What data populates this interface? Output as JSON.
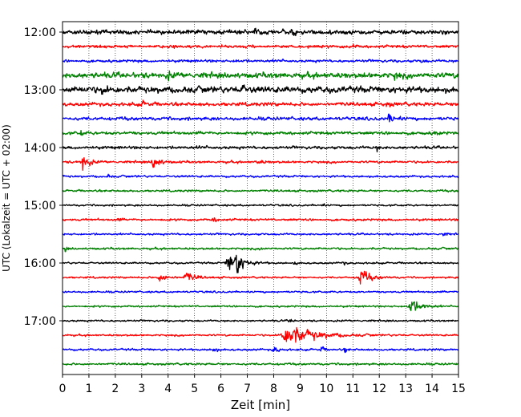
{
  "chart_data": {
    "type": "line",
    "subtype": "helicorder",
    "xlabel": "Zeit  [min]",
    "ylabel": "UTC (Lokalzeit = UTC + 02:00)",
    "xlim": [
      0,
      15
    ],
    "x_ticks": [
      0,
      1,
      2,
      3,
      4,
      5,
      6,
      7,
      8,
      9,
      10,
      11,
      12,
      13,
      14,
      15
    ],
    "vertical_grid": "dotted",
    "row_interval_min": 15,
    "row_start_time": "12:00",
    "y_tick_labels": [
      "12:00",
      "13:00",
      "14:00",
      "15:00",
      "16:00",
      "17:00"
    ],
    "y_tick_rows": [
      0,
      4,
      8,
      12,
      16,
      20
    ],
    "color_cycle": [
      "#000000",
      "#ff0000",
      "#0000ff",
      "#008000"
    ],
    "traces": [
      {
        "row": 0,
        "noise": 0.33,
        "events": [
          {
            "t": 2.5,
            "amp": 0.35,
            "dur": 0.15
          },
          {
            "t": 7.3,
            "amp": 0.4,
            "dur": 0.2
          },
          {
            "t": 8.7,
            "amp": 0.45,
            "dur": 0.2
          },
          {
            "t": 10.9,
            "amp": 0.35,
            "dur": 0.15
          }
        ]
      },
      {
        "row": 1,
        "noise": 0.22,
        "events": [
          {
            "t": 4.2,
            "amp": 0.5,
            "dur": 0.15
          },
          {
            "t": 11.0,
            "amp": 0.4,
            "dur": 0.15
          }
        ]
      },
      {
        "row": 2,
        "noise": 0.2,
        "events": [
          {
            "t": 6.6,
            "amp": 0.3,
            "dur": 0.15
          },
          {
            "t": 8.1,
            "amp": 0.3,
            "dur": 0.15
          },
          {
            "t": 13.6,
            "amp": 0.3,
            "dur": 0.15
          }
        ]
      },
      {
        "row": 3,
        "noise": 0.42,
        "events": [
          {
            "t": 4.0,
            "amp": 0.4,
            "dur": 0.25
          },
          {
            "t": 12.6,
            "amp": 0.4,
            "dur": 0.2
          }
        ]
      },
      {
        "row": 4,
        "noise": 0.48,
        "events": [
          {
            "t": 1.5,
            "amp": 0.5,
            "dur": 0.3
          },
          {
            "t": 6.8,
            "amp": 0.5,
            "dur": 0.3
          }
        ]
      },
      {
        "row": 5,
        "noise": 0.28,
        "events": [
          {
            "t": 3.0,
            "amp": 0.35,
            "dur": 0.3
          },
          {
            "t": 12.3,
            "amp": 0.5,
            "dur": 0.15
          }
        ]
      },
      {
        "row": 6,
        "noise": 0.25,
        "events": [
          {
            "t": 12.4,
            "amp": 0.85,
            "dur": 0.3
          }
        ]
      },
      {
        "row": 7,
        "noise": 0.24,
        "events": [
          {
            "t": 0.7,
            "amp": 0.5,
            "dur": 0.1
          },
          {
            "t": 14.1,
            "amp": 0.4,
            "dur": 0.15
          }
        ]
      },
      {
        "row": 8,
        "noise": 0.22,
        "events": [
          {
            "t": 5.2,
            "amp": 0.4,
            "dur": 0.15
          },
          {
            "t": 11.9,
            "amp": 0.45,
            "dur": 0.15
          }
        ]
      },
      {
        "row": 9,
        "noise": 0.18,
        "events": [
          {
            "t": 0.75,
            "amp": 1.3,
            "dur": 0.35
          },
          {
            "t": 3.45,
            "amp": 1.2,
            "dur": 0.35
          },
          {
            "t": 7.4,
            "amp": 0.35,
            "dur": 0.3
          }
        ]
      },
      {
        "row": 10,
        "noise": 0.16,
        "events": [
          {
            "t": 1.7,
            "amp": 0.3,
            "dur": 0.15
          }
        ]
      },
      {
        "row": 11,
        "noise": 0.16,
        "events": []
      },
      {
        "row": 12,
        "noise": 0.14,
        "events": [
          {
            "t": 9.8,
            "amp": 0.3,
            "dur": 0.15
          }
        ]
      },
      {
        "row": 13,
        "noise": 0.17,
        "events": [
          {
            "t": 2.1,
            "amp": 0.45,
            "dur": 0.1
          },
          {
            "t": 5.7,
            "amp": 0.35,
            "dur": 0.3
          }
        ]
      },
      {
        "row": 14,
        "noise": 0.15,
        "events": [
          {
            "t": 14.4,
            "amp": 0.45,
            "dur": 0.15
          }
        ]
      },
      {
        "row": 15,
        "noise": 0.16,
        "events": [
          {
            "t": 0.1,
            "amp": 0.45,
            "dur": 0.1
          },
          {
            "t": 7.5,
            "amp": 0.3,
            "dur": 0.15
          }
        ]
      },
      {
        "row": 16,
        "noise": 0.14,
        "events": [
          {
            "t": 6.35,
            "amp": 1.6,
            "dur": 0.7
          },
          {
            "t": 6.6,
            "amp": 1.5,
            "dur": 0.3
          },
          {
            "t": 8.8,
            "amp": 0.4,
            "dur": 0.15
          },
          {
            "t": 10.6,
            "amp": 0.4,
            "dur": 0.15
          }
        ]
      },
      {
        "row": 17,
        "noise": 0.14,
        "events": [
          {
            "t": 3.7,
            "amp": 0.6,
            "dur": 0.5
          },
          {
            "t": 4.7,
            "amp": 0.8,
            "dur": 0.5
          },
          {
            "t": 11.3,
            "amp": 1.2,
            "dur": 0.6
          }
        ]
      },
      {
        "row": 18,
        "noise": 0.14,
        "events": []
      },
      {
        "row": 19,
        "noise": 0.14,
        "events": [
          {
            "t": 13.2,
            "amp": 1.2,
            "dur": 0.6
          }
        ]
      },
      {
        "row": 20,
        "noise": 0.14,
        "events": [
          {
            "t": 8.6,
            "amp": 0.3,
            "dur": 0.2
          }
        ]
      },
      {
        "row": 21,
        "noise": 0.14,
        "events": [
          {
            "t": 8.6,
            "amp": 1.7,
            "dur": 1.5
          }
        ]
      },
      {
        "row": 22,
        "noise": 0.16,
        "events": [
          {
            "t": 5.7,
            "amp": 0.55,
            "dur": 0.2
          },
          {
            "t": 8.0,
            "amp": 0.5,
            "dur": 0.25
          },
          {
            "t": 9.8,
            "amp": 0.45,
            "dur": 0.2
          },
          {
            "t": 10.7,
            "amp": 0.7,
            "dur": 0.1
          }
        ]
      },
      {
        "row": 23,
        "noise": 0.16,
        "events": []
      }
    ]
  }
}
